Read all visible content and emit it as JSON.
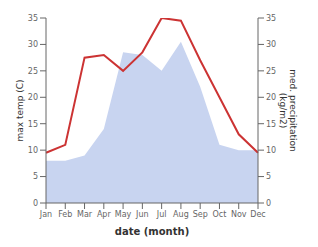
{
  "chart_data": {
    "type": "line",
    "xlabel": "date (month)",
    "ylabel": "max temp (C)",
    "y2label": "med. precipitation\n(kg/m2)",
    "categories": [
      "Jan",
      "Feb",
      "Mar",
      "Apr",
      "May",
      "Jun",
      "Jul",
      "Aug",
      "Sep",
      "Oct",
      "Nov",
      "Dec"
    ],
    "series": [
      {
        "type": "area",
        "axis": "y2",
        "color": "#c8d4f0",
        "values": [
          8.0,
          8.0,
          9.0,
          14.0,
          28.5,
          28.0,
          25.0,
          30.5,
          22.0,
          11.0,
          10.0,
          10.0
        ]
      },
      {
        "type": "line",
        "color": "#cc3333",
        "values": [
          9.5,
          11.0,
          27.5,
          28.0,
          25.0,
          28.5,
          35.0,
          34.5,
          27.0,
          20.0,
          13.0,
          9.5
        ]
      }
    ],
    "ylim": [
      0,
      35
    ],
    "yticks": [
      0,
      5,
      10,
      15,
      20,
      25,
      30,
      35
    ],
    "y2lim": [
      0,
      35
    ],
    "y2ticks": [
      0,
      5,
      10,
      15,
      20,
      25,
      30,
      35
    ],
    "grid": false
  }
}
